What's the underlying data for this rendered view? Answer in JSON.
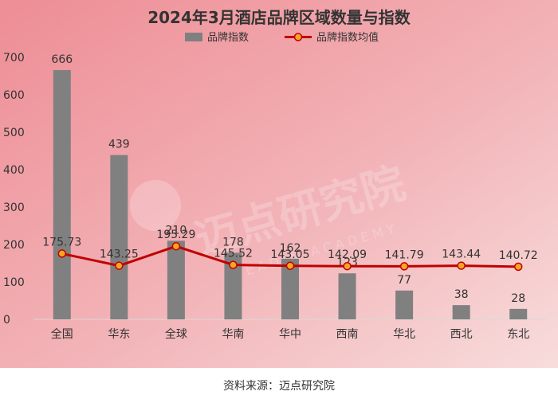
{
  "chart_data": {
    "type": "bar",
    "title": "2024年3月酒店品牌区域数量与指数",
    "categories": [
      "全国",
      "华东",
      "全球",
      "华南",
      "华中",
      "西南",
      "华北",
      "西北",
      "东北"
    ],
    "series": [
      {
        "name": "品牌指数",
        "type": "bar",
        "color": "#808080",
        "values": [
          666,
          439,
          210,
          178,
          162,
          123,
          77,
          38,
          28
        ]
      },
      {
        "name": "品牌指数均值",
        "type": "line",
        "color": "#c00000",
        "marker_color": "#f5a623",
        "values": [
          175.73,
          143.25,
          195.29,
          145.52,
          143.05,
          142.09,
          141.79,
          143.44,
          140.72
        ]
      }
    ],
    "y_ticks": [
      0,
      100,
      200,
      300,
      400,
      500,
      600,
      700
    ],
    "ylim": [
      0,
      700
    ],
    "xlabel": "",
    "ylabel": "",
    "grid": false,
    "legend_position": "top-center"
  },
  "watermark": {
    "text": "迈点研究院",
    "subtext": "MEADIN ACADEMY"
  },
  "source": "资料来源：迈点研究院"
}
